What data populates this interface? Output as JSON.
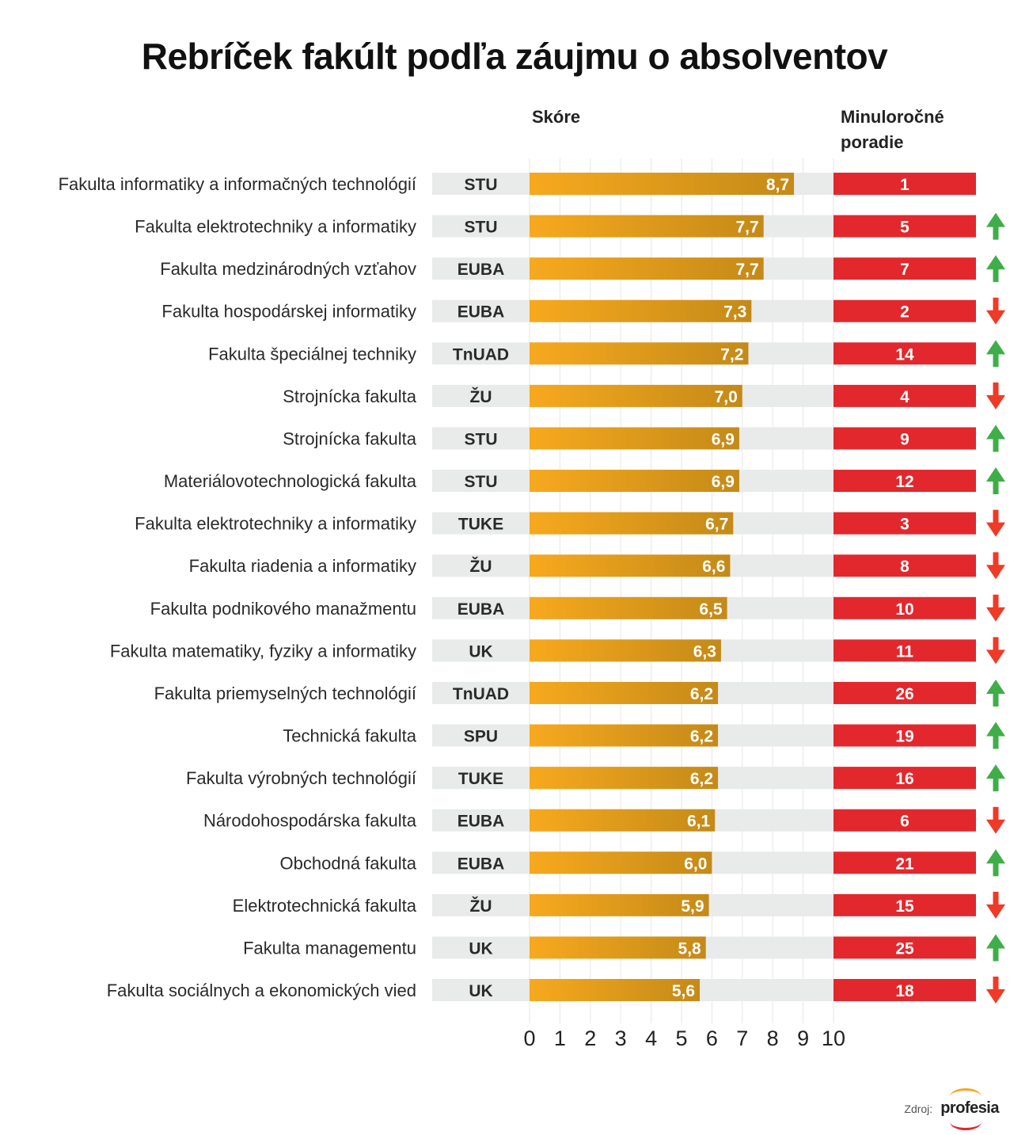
{
  "title": "Rebríček fakúlt podľa záujmu o absolventov",
  "headers": {
    "score": "Skóre",
    "last_year_line1": "Minuloročné",
    "last_year_line2": "poradie"
  },
  "source": {
    "label": "Zdroj:",
    "brand": "profesia"
  },
  "colors": {
    "bar_start": "#F7A91E",
    "bar_end": "#C48A18",
    "track": "#E9EAEA",
    "uni_bg": "#E9EAEA",
    "rank_bg": "#E2282D",
    "arrow_up": "#3FAE49",
    "arrow_down": "#EE3A27",
    "grid": "#E6E6E6"
  },
  "chart_data": {
    "type": "bar",
    "orientation": "horizontal",
    "title": "Rebríček fakúlt podľa záujmu o absolventov",
    "xlabel": "Skóre",
    "ylabel": "",
    "xlim": [
      0,
      10
    ],
    "xticks": [
      "0",
      "1",
      "2",
      "3",
      "4",
      "5",
      "6",
      "7",
      "8",
      "9",
      "10"
    ],
    "grid": true,
    "rows": [
      {
        "faculty": "Fakulta informatiky a informačných technológií",
        "university": "STU",
        "score": 8.7,
        "score_label": "8,7",
        "last_year_rank": "1",
        "trend": "none"
      },
      {
        "faculty": "Fakulta elektrotechniky a informatiky",
        "university": "STU",
        "score": 7.7,
        "score_label": "7,7",
        "last_year_rank": "5",
        "trend": "up"
      },
      {
        "faculty": "Fakulta medzinárodných vzťahov",
        "university": "EUBA",
        "score": 7.7,
        "score_label": "7,7",
        "last_year_rank": "7",
        "trend": "up"
      },
      {
        "faculty": "Fakulta hospodárskej informatiky",
        "university": "EUBA",
        "score": 7.3,
        "score_label": "7,3",
        "last_year_rank": "2",
        "trend": "down"
      },
      {
        "faculty": "Fakulta špeciálnej techniky",
        "university": "TnUAD",
        "score": 7.2,
        "score_label": "7,2",
        "last_year_rank": "14",
        "trend": "up"
      },
      {
        "faculty": "Strojnícka fakulta",
        "university": "ŽU",
        "score": 7.0,
        "score_label": "7,0",
        "last_year_rank": "4",
        "trend": "down"
      },
      {
        "faculty": "Strojnícka fakulta",
        "university": "STU",
        "score": 6.9,
        "score_label": "6,9",
        "last_year_rank": "9",
        "trend": "up"
      },
      {
        "faculty": "Materiálovotechnologická fakulta",
        "university": "STU",
        "score": 6.9,
        "score_label": "6,9",
        "last_year_rank": "12",
        "trend": "up"
      },
      {
        "faculty": "Fakulta elektrotechniky a informatiky",
        "university": "TUKE",
        "score": 6.7,
        "score_label": "6,7",
        "last_year_rank": "3",
        "trend": "down"
      },
      {
        "faculty": "Fakulta riadenia a informatiky",
        "university": "ŽU",
        "score": 6.6,
        "score_label": "6,6",
        "last_year_rank": "8",
        "trend": "down"
      },
      {
        "faculty": "Fakulta podnikového manažmentu",
        "university": "EUBA",
        "score": 6.5,
        "score_label": "6,5",
        "last_year_rank": "10",
        "trend": "down"
      },
      {
        "faculty": "Fakulta matematiky, fyziky a informatiky",
        "university": "UK",
        "score": 6.3,
        "score_label": "6,3",
        "last_year_rank": "11",
        "trend": "down"
      },
      {
        "faculty": "Fakulta priemyselných technológií",
        "university": "TnUAD",
        "score": 6.2,
        "score_label": "6,2",
        "last_year_rank": "26",
        "trend": "up"
      },
      {
        "faculty": "Technická fakulta",
        "university": "SPU",
        "score": 6.2,
        "score_label": "6,2",
        "last_year_rank": "19",
        "trend": "up"
      },
      {
        "faculty": "Fakulta výrobných technológií",
        "university": "TUKE",
        "score": 6.2,
        "score_label": "6,2",
        "last_year_rank": "16",
        "trend": "up"
      },
      {
        "faculty": "Národohospodárska fakulta",
        "university": "EUBA",
        "score": 6.1,
        "score_label": "6,1",
        "last_year_rank": "6",
        "trend": "down"
      },
      {
        "faculty": "Obchodná fakulta",
        "university": "EUBA",
        "score": 6.0,
        "score_label": "6,0",
        "last_year_rank": "21",
        "trend": "up"
      },
      {
        "faculty": "Elektrotechnická fakulta",
        "university": "ŽU",
        "score": 5.9,
        "score_label": "5,9",
        "last_year_rank": "15",
        "trend": "down"
      },
      {
        "faculty": "Fakulta managementu",
        "university": "UK",
        "score": 5.8,
        "score_label": "5,8",
        "last_year_rank": "25",
        "trend": "up"
      },
      {
        "faculty": "Fakulta sociálnych a ekonomických vied",
        "university": "UK",
        "score": 5.6,
        "score_label": "5,6",
        "last_year_rank": "18",
        "trend": "down"
      }
    ]
  }
}
